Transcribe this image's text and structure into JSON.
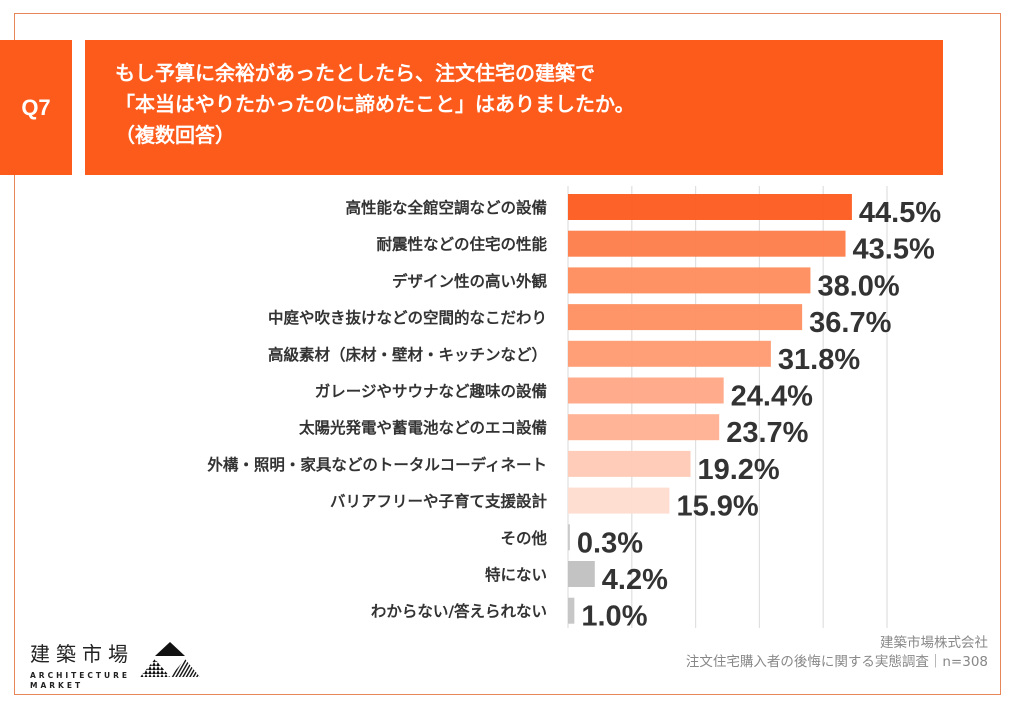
{
  "header": {
    "question_id": "Q7",
    "question_lines": [
      "もし予算に余裕があったとしたら、注文住宅の建築で",
      "「本当はやりたかったのに諦めたこと」はありましたか。",
      "（複数回答）"
    ]
  },
  "colors": {
    "accent": "#fd5b1c",
    "frame": "#e8865a",
    "bars": [
      "#fd5b1c",
      "#fe7c4a",
      "#fe8c5d",
      "#fe8f61",
      "#fe9a70",
      "#ffa686",
      "#ffb092",
      "#ffc9b5",
      "#ffdcd0",
      "#c8c8c8",
      "#c0c0c0",
      "#c4c4c4"
    ],
    "gridline": "#e0e0e0"
  },
  "chart_data": {
    "type": "bar",
    "orientation": "horizontal",
    "title": "もし予算に余裕があったとしたら、注文住宅の建築で「本当はやりたかったのに諦めたこと」はありましたか。（複数回答）",
    "xlabel": "",
    "ylabel": "",
    "unit": "%",
    "xlim": [
      0,
      50
    ],
    "grid": true,
    "gridline_step": 10,
    "categories": [
      "高性能な全館空調などの設備",
      "耐震性などの住宅の性能",
      "デザイン性の高い外観",
      "中庭や吹き抜けなどの空間的なこだわり",
      "高級素材（床材・壁材・キッチンなど）",
      "ガレージやサウナなど趣味の設備",
      "太陽光発電や蓄電池などのエコ設備",
      "外構・照明・家具などのトータルコーディネート",
      "バリアフリーや子育て支援設計",
      "その他",
      "特にない",
      "わからない/答えられない"
    ],
    "values": [
      44.5,
      43.5,
      38.0,
      36.7,
      31.8,
      24.4,
      23.7,
      19.2,
      15.9,
      0.3,
      4.2,
      1.0
    ],
    "value_labels": [
      "44.5%",
      "43.5%",
      "38.0%",
      "36.7%",
      "31.8%",
      "24.4%",
      "23.7%",
      "19.2%",
      "15.9%",
      "0.3%",
      "4.2%",
      "1.0%"
    ]
  },
  "logo": {
    "name_jp": "建築市場",
    "name_en_line1": "ARCHITECTURE",
    "name_en_line2": "MARKET"
  },
  "footer": {
    "company": "建築市場株式会社",
    "survey": "注文住宅購入者の後悔に関する実態調査｜n=308"
  }
}
